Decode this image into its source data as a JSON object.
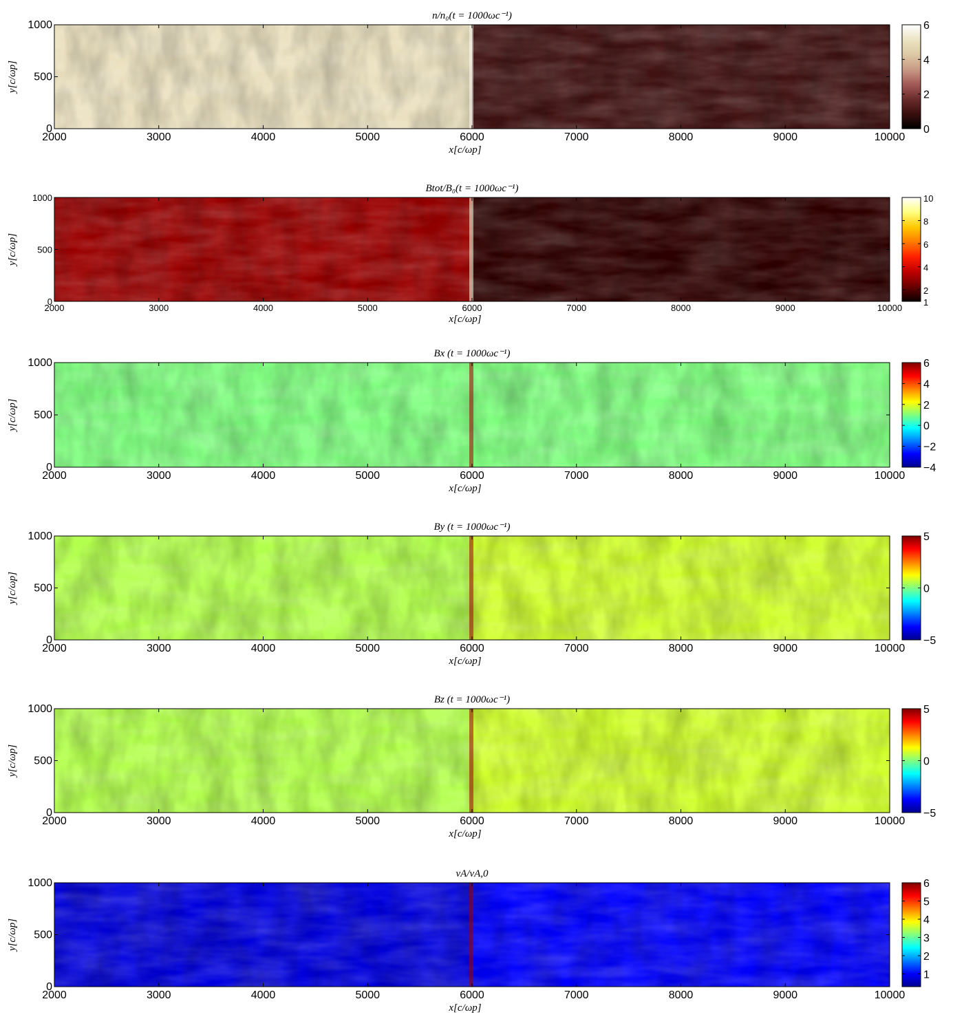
{
  "colors": {
    "density": [
      "#000000",
      "#3a0e0e",
      "#6b2c2c",
      "#a35a58",
      "#c89a86",
      "#ddcaa5",
      "#ece4c4",
      "#ffffff"
    ],
    "hot": [
      "#0a0000",
      "#6a0000",
      "#c00000",
      "#ff2000",
      "#ff7a00",
      "#ffc800",
      "#ffff80",
      "#ffffff"
    ],
    "jet": [
      "#00008f",
      "#0000ff",
      "#0080ff",
      "#00ffff",
      "#80ff80",
      "#ffff00",
      "#ff8000",
      "#ff0000",
      "#800000"
    ]
  },
  "chart_data": [
    {
      "type": "heatmap",
      "title": "n/n₀(t = 1000ωc⁻¹)",
      "xlabel": "x[c/ωp]",
      "ylabel": "y[c/ωp]",
      "xlim": [
        2000,
        10000
      ],
      "ylim": [
        0,
        1000
      ],
      "x_ticks": [
        "2000",
        "3000",
        "4000",
        "5000",
        "6000",
        "7000",
        "8000",
        "9000",
        "10000"
      ],
      "y_ticks": [
        "0",
        "500",
        "1000"
      ],
      "colorbar": {
        "range": [
          0,
          6
        ],
        "ticks": [
          "0",
          "2",
          "4",
          "6"
        ],
        "colormap": "density"
      },
      "shock_x": 6000,
      "upstream_level": 1,
      "downstream_level": 5
    },
    {
      "type": "heatmap",
      "title": "Btot/B₀(t = 1000ωc⁻¹)",
      "xlabel": "x[c/ωp]",
      "ylabel": "y[c/ωp]",
      "xlim": [
        2000,
        10000
      ],
      "ylim": [
        0,
        1000
      ],
      "x_ticks": [
        "2000",
        "3000",
        "4000",
        "5000",
        "6000",
        "7000",
        "8000",
        "9000",
        "10000"
      ],
      "y_ticks": [
        "0",
        "500",
        "1000"
      ],
      "colorbar": {
        "range": [
          1,
          10
        ],
        "ticks": [
          "1",
          "2",
          "4",
          "6",
          "8",
          "10"
        ],
        "colormap": "hot"
      },
      "shock_x": 6000,
      "upstream_level": 1.5,
      "downstream_level": 3
    },
    {
      "type": "heatmap",
      "title": "Bx    (t = 1000ωc⁻¹)",
      "xlabel": "x[c/ωp]",
      "ylabel": "y[c/ωp]",
      "xlim": [
        2000,
        10000
      ],
      "ylim": [
        0,
        1000
      ],
      "x_ticks": [
        "2000",
        "3000",
        "4000",
        "5000",
        "6000",
        "7000",
        "8000",
        "9000",
        "10000"
      ],
      "y_ticks": [
        "0",
        "500",
        "1000"
      ],
      "colorbar": {
        "range": [
          -4,
          6
        ],
        "ticks": [
          "-4",
          "-2",
          "0",
          "2",
          "4",
          "6"
        ],
        "colormap": "jet"
      },
      "shock_x": 6000,
      "upstream_level": 1,
      "downstream_level": 1
    },
    {
      "type": "heatmap",
      "title": "By    (t = 1000ωc⁻¹)",
      "xlabel": "x[c/ωp]",
      "ylabel": "y[c/ωp]",
      "xlim": [
        2000,
        10000
      ],
      "ylim": [
        0,
        1000
      ],
      "x_ticks": [
        "2000",
        "3000",
        "4000",
        "5000",
        "6000",
        "7000",
        "8000",
        "9000",
        "10000"
      ],
      "y_ticks": [
        "0",
        "500",
        "1000"
      ],
      "colorbar": {
        "range": [
          -5,
          5
        ],
        "ticks": [
          "-5",
          "0",
          "5"
        ],
        "colormap": "jet"
      },
      "shock_x": 6000,
      "upstream_level": 0.8,
      "downstream_level": 0.5
    },
    {
      "type": "heatmap",
      "title": "Bz    (t = 1000ωc⁻¹)",
      "xlabel": "x[c/ωp]",
      "ylabel": "y[c/ωp]",
      "xlim": [
        2000,
        10000
      ],
      "ylim": [
        0,
        1000
      ],
      "x_ticks": [
        "2000",
        "3000",
        "4000",
        "5000",
        "6000",
        "7000",
        "8000",
        "9000",
        "10000"
      ],
      "y_ticks": [
        "0",
        "500",
        "1000"
      ],
      "colorbar": {
        "range": [
          -5,
          5
        ],
        "ticks": [
          "-5",
          "0",
          "5"
        ],
        "colormap": "jet"
      },
      "shock_x": 6000,
      "upstream_level": 0.8,
      "downstream_level": 0.5
    },
    {
      "type": "heatmap",
      "title": "vA/vA,0",
      "xlabel": "x[c/ωp]",
      "ylabel": "y[c/ωp]",
      "xlim": [
        2000,
        10000
      ],
      "ylim": [
        0,
        1000
      ],
      "x_ticks": [
        "2000",
        "3000",
        "4000",
        "5000",
        "6000",
        "7000",
        "8000",
        "9000",
        "10000"
      ],
      "y_ticks": [
        "0",
        "500",
        "1000"
      ],
      "colorbar": {
        "range": [
          0.3,
          6
        ],
        "ticks": [
          "1",
          "2",
          "3",
          "4",
          "5",
          "6"
        ],
        "colormap": "jet"
      },
      "shock_x": 6000,
      "upstream_level": 1,
      "downstream_level": 0.8
    }
  ]
}
